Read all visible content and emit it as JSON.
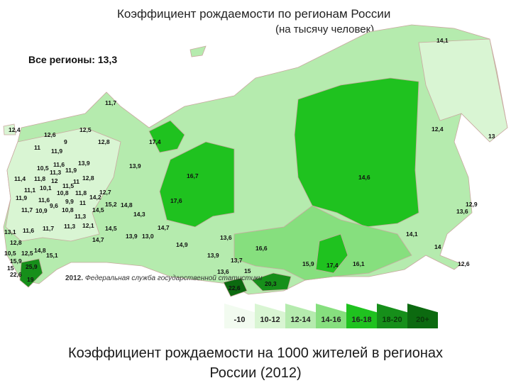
{
  "title": "Коэффициент рождаемости по регионам России",
  "subtitle": "(на тысячу человек)",
  "all_regions": "Все регионы: 13,3",
  "source_year": "2012.",
  "source_text": "Федеральная служба государственной статистики",
  "legend": [
    {
      "label": "-10",
      "color": "#f2fbf0"
    },
    {
      "label": "10-12",
      "color": "#d9f5d3"
    },
    {
      "label": "12-14",
      "color": "#b5ebae"
    },
    {
      "label": "14-16",
      "color": "#86df7e"
    },
    {
      "label": "16-18",
      "color": "#1fc21f"
    },
    {
      "label": "18-20",
      "color": "#168f1a"
    },
    {
      "label": "20+",
      "color": "#0c6a10"
    }
  ],
  "region_values": [
    "14,1",
    "11,7",
    "12,4",
    "12,5",
    "12,6",
    "9",
    "12,8",
    "17,4",
    "12,4",
    "13",
    "11",
    "11,9",
    "13,9",
    "11,6",
    "10,5",
    "11,3",
    "11,9",
    "13,9",
    "16,7",
    "14,6",
    "11,4",
    "11,8",
    "12",
    "11",
    "12,8",
    "11,5",
    "11,1",
    "10,1",
    "10,8",
    "11,8",
    "12,7",
    "11,9",
    "11,6",
    "9,9",
    "11",
    "14,2",
    "15,2",
    "14,8",
    "9,6",
    "17,6",
    "12,9",
    "11,7",
    "10,9",
    "10,8",
    "14,5",
    "14,3",
    "13,6",
    "11,3",
    "11,3",
    "12,1",
    "13,1",
    "11,6",
    "11,7",
    "14,5",
    "14,7",
    "14,1",
    "13,9",
    "13,0",
    "14,7",
    "13,6",
    "12,8",
    "14,9",
    "14",
    "14,8",
    "16,6",
    "15,1",
    "13,9",
    "10,5",
    "12,5",
    "13,7",
    "15,9",
    "15,9",
    "17,4",
    "16,1",
    "12,6",
    "15",
    "25,9",
    "13,6",
    "15",
    "22,6",
    "19",
    "22,6",
    "20,3"
  ],
  "caption_line1": "Коэффициент рождаемости на 1000 жителей в регионах",
  "caption_line2": "России (2012)"
}
